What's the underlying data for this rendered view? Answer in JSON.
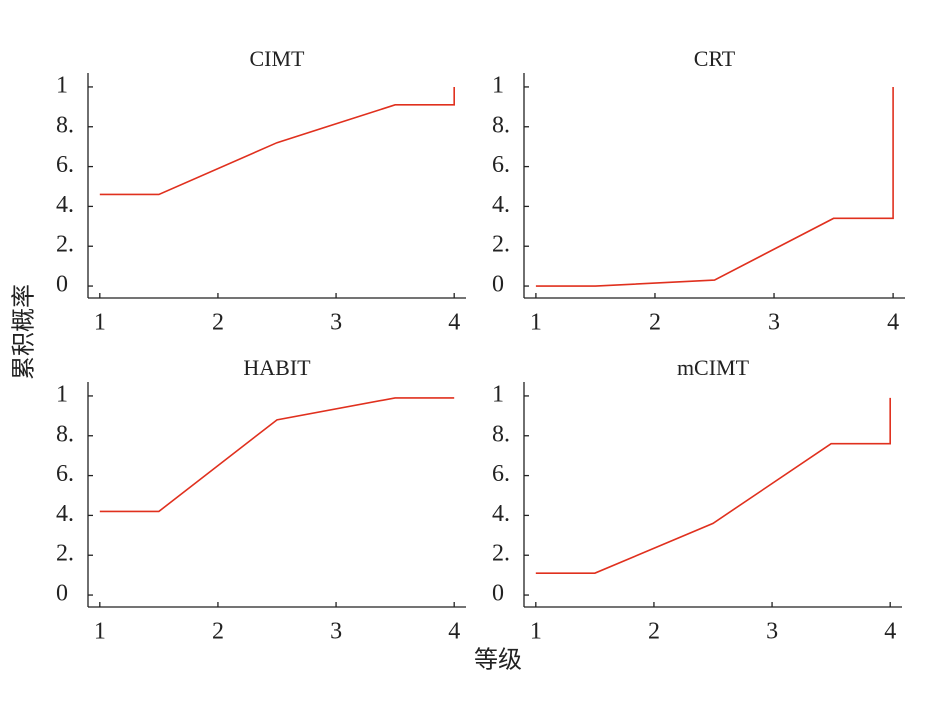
{
  "ylabel": "累积概率",
  "xlabel": "等级",
  "chart_data": [
    {
      "type": "line",
      "title": "CIMT",
      "color": "#e0301e",
      "x": [
        1,
        1.5,
        2.5,
        3.5,
        4,
        4
      ],
      "values": [
        0.46,
        0.46,
        0.72,
        0.91,
        0.91,
        1.0
      ],
      "xlim": [
        0.9,
        4.1
      ],
      "ylim": [
        -0.06,
        1.07
      ],
      "xticks": [
        1,
        2,
        3,
        4
      ],
      "yticks": [
        0,
        {
          "value": 0.2,
          "label": "2."
        },
        {
          "value": 0.4,
          "label": "4."
        },
        {
          "value": 0.6,
          "label": "6."
        },
        {
          "value": 0.8,
          "label": "8."
        },
        1
      ]
    },
    {
      "type": "line",
      "title": "CRT",
      "color": "#e0301e",
      "x": [
        1,
        1.5,
        2.5,
        3.5,
        4,
        4
      ],
      "values": [
        0,
        0,
        0.03,
        0.34,
        0.34,
        1.0
      ],
      "xlim": [
        0.9,
        4.1
      ],
      "ylim": [
        -0.06,
        1.07
      ],
      "xticks": [
        1,
        2,
        3,
        4
      ],
      "yticks": [
        0,
        {
          "value": 0.2,
          "label": "2."
        },
        {
          "value": 0.4,
          "label": "4."
        },
        {
          "value": 0.6,
          "label": "6."
        },
        {
          "value": 0.8,
          "label": "8."
        },
        1
      ]
    },
    {
      "type": "line",
      "title": "HABIT",
      "color": "#e0301e",
      "x": [
        1,
        1.5,
        2.5,
        3.5,
        4
      ],
      "values": [
        0.42,
        0.42,
        0.88,
        0.99,
        0.99
      ],
      "xlim": [
        0.9,
        4.1
      ],
      "ylim": [
        -0.06,
        1.07
      ],
      "xticks": [
        1,
        2,
        3,
        4
      ],
      "yticks": [
        0,
        {
          "value": 0.2,
          "label": "2."
        },
        {
          "value": 0.4,
          "label": "4."
        },
        {
          "value": 0.6,
          "label": "6."
        },
        {
          "value": 0.8,
          "label": "8."
        },
        1
      ]
    },
    {
      "type": "line",
      "title": "mCIMT",
      "color": "#e0301e",
      "x": [
        1,
        1.5,
        2.5,
        3.5,
        4,
        4
      ],
      "values": [
        0.11,
        0.11,
        0.36,
        0.76,
        0.76,
        0.99
      ],
      "xlim": [
        0.9,
        4.1
      ],
      "ylim": [
        -0.06,
        1.07
      ],
      "xticks": [
        1,
        2,
        3,
        4
      ],
      "yticks": [
        0,
        {
          "value": 0.2,
          "label": "2."
        },
        {
          "value": 0.4,
          "label": "4."
        },
        {
          "value": 0.6,
          "label": "6."
        },
        {
          "value": 0.8,
          "label": "8."
        },
        1
      ]
    }
  ]
}
